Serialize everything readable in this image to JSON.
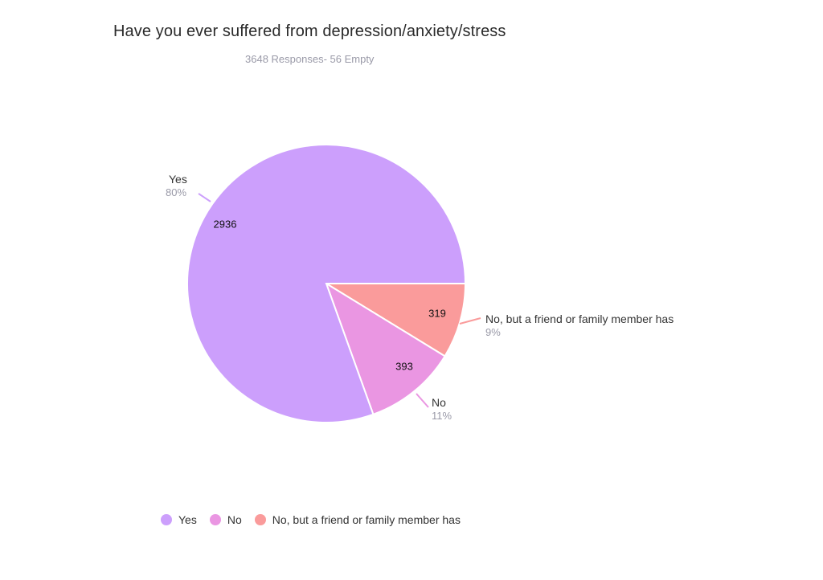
{
  "chart_data": {
    "type": "pie",
    "title": "Have you ever suffered from depression/anxiety/stress",
    "subtitle": "3648 Responses- 56 Empty",
    "slices": [
      {
        "label": "Yes",
        "value": 2936,
        "percent": "80%",
        "color": "#cc9ffc"
      },
      {
        "label": "No",
        "value": 393,
        "percent": "11%",
        "color": "#ea96e2"
      },
      {
        "label": "No, but a friend or family member has",
        "value": 319,
        "percent": "9%",
        "color": "#fa9b9b"
      }
    ],
    "legend_position": "bottom"
  }
}
